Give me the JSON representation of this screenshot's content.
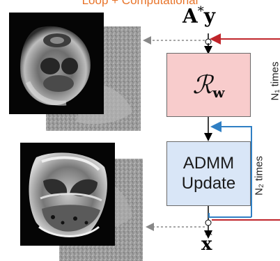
{
  "top_caption": "Loop + Computational",
  "input_label": {
    "base": "A",
    "sup": "*",
    "var": "y"
  },
  "regularizer_block": {
    "script": "ℛ",
    "sub": "w",
    "fill": "#f8cccc"
  },
  "admm_block": {
    "line1": "ADMM",
    "line2": "Update",
    "fill": "#d9e6f7"
  },
  "output_label": {
    "var": "x",
    "accent": "^"
  },
  "outer_loop": {
    "label": "N₁ times",
    "color": "#c0252b"
  },
  "inner_loop": {
    "label": "N₂ times",
    "color": "#2f7fc4"
  },
  "images": [
    {
      "name": "initial-blurry-knee-mri"
    },
    {
      "name": "reconstructed-knee-mri"
    }
  ],
  "colors": {
    "arrow": "#000000",
    "dashed_arrow": "#888888"
  }
}
